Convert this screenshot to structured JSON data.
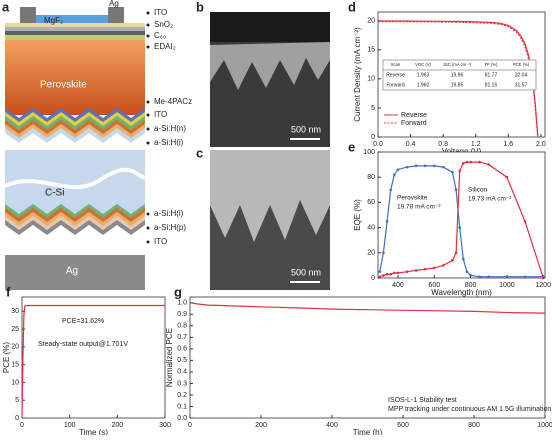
{
  "figure": {
    "a": {
      "panel": "a",
      "top": [
        "MgF₂",
        "Ag"
      ],
      "perovskite": "Perovskite",
      "silicon": "C-Si",
      "bottom": "Ag",
      "labels": [
        "ITO",
        "SnO₂",
        "C₆₀",
        "EDAI₂",
        "Me-4PACz",
        "ITO",
        "a-Si:H(n)",
        "a-Si:H(i)",
        "a-Si:H(i)",
        "a-Si:H(p)",
        "ITO"
      ]
    },
    "b": {
      "panel": "b",
      "scale": "500 nm"
    },
    "c": {
      "panel": "c",
      "scale": "500 nm"
    }
  },
  "chart_data": [
    {
      "type": "line",
      "panel": "d",
      "xlabel": "Voltage (V)",
      "ylabel": "Current Density (mA cm⁻²)",
      "xlim": [
        0,
        2.05
      ],
      "ylim": [
        0,
        21.5
      ],
      "xticks": [
        {
          "value": 0,
          "label": "0.0"
        },
        0.4,
        0.8,
        1.2,
        1.6,
        {
          "value": 2,
          "label": "2.0"
        }
      ],
      "yticks": [
        0,
        5,
        10,
        15,
        20
      ],
      "legend": "lower-left",
      "series": [
        {
          "name": "Reverse",
          "color": "#e03040",
          "dash": false,
          "x": [
            0,
            0.2,
            0.4,
            0.6,
            0.8,
            1.0,
            1.2,
            1.4,
            1.5,
            1.6,
            1.7,
            1.75,
            1.8,
            1.85,
            1.9,
            1.93,
            1.963
          ],
          "values": [
            19.96,
            19.95,
            19.94,
            19.92,
            19.9,
            19.87,
            19.82,
            19.7,
            19.55,
            19.2,
            18.3,
            17.5,
            16.2,
            14.0,
            9.8,
            5.8,
            0
          ]
        },
        {
          "name": "Forward",
          "color": "#e03040",
          "dash": true,
          "x": [
            0,
            0.2,
            0.4,
            0.6,
            0.8,
            1.0,
            1.2,
            1.4,
            1.5,
            1.6,
            1.7,
            1.75,
            1.8,
            1.85,
            1.9,
            1.93,
            1.96
          ],
          "values": [
            19.85,
            19.84,
            19.83,
            19.81,
            19.78,
            19.74,
            19.68,
            19.55,
            19.38,
            19.0,
            18.0,
            17.1,
            15.7,
            13.4,
            9.2,
            5.2,
            0
          ]
        }
      ],
      "table": {
        "header": [
          "Scan",
          "VOC (V)",
          "JSC (mA cm⁻²)",
          "FF (%)",
          "PCE (%)"
        ],
        "rows": [
          [
            "Reverse",
            "1.963",
            "19.96",
            "81.77",
            "32.04"
          ],
          [
            "Forward",
            "1.960",
            "19.85",
            "81.15",
            "31.57"
          ]
        ]
      }
    },
    {
      "type": "line",
      "panel": "e",
      "xlabel": "Wavelength (nm)",
      "ylabel": "EQE (%)",
      "xlim": [
        290,
        1210
      ],
      "ylim": [
        0,
        100
      ],
      "xticks": [
        400,
        600,
        800,
        1000,
        1200
      ],
      "yticks": [
        0,
        20,
        40,
        60,
        80,
        100
      ],
      "markers": true,
      "series": [
        {
          "color": "#3b6fc4",
          "x": [
            300,
            320,
            340,
            360,
            380,
            400,
            450,
            500,
            550,
            600,
            650,
            700,
            720,
            740,
            760,
            780,
            800,
            850,
            900,
            1000,
            1100,
            1200
          ],
          "values": [
            5,
            20,
            45,
            70,
            82,
            86,
            88,
            89,
            89,
            89,
            88,
            84,
            70,
            40,
            15,
            5,
            2,
            1,
            1,
            1,
            1,
            1
          ]
        },
        {
          "color": "#e03040",
          "x": [
            300,
            320,
            340,
            360,
            380,
            400,
            450,
            500,
            550,
            600,
            650,
            700,
            720,
            740,
            760,
            780,
            800,
            850,
            900,
            1000,
            1100,
            1200
          ],
          "values": [
            1,
            2,
            3,
            3,
            4,
            4,
            5,
            6,
            7,
            8,
            10,
            14,
            20,
            85,
            91,
            92,
            92,
            92,
            90,
            80,
            45,
            0
          ]
        }
      ],
      "annotations": [
        "Perovskite",
        "19.78 mA cm⁻²",
        "Silicon",
        "19.73 mA cm⁻²"
      ]
    },
    {
      "type": "line",
      "panel": "f",
      "xlabel": "Time (s)",
      "ylabel": "PCE (%)",
      "xlim": [
        0,
        300
      ],
      "ylim": [
        0,
        34
      ],
      "xticks": [
        0,
        100,
        200,
        300
      ],
      "yticks": [
        0,
        5,
        10,
        15,
        20,
        25,
        30
      ],
      "series": [
        {
          "color": "#e03040",
          "x": [
            0,
            2,
            4,
            6,
            10,
            50,
            100,
            150,
            200,
            250,
            300
          ],
          "values": [
            0,
            18,
            29,
            31.5,
            31.6,
            31.62,
            31.62,
            31.62,
            31.62,
            31.62,
            31.62
          ]
        }
      ],
      "annotations": [
        "PCE=31.62%",
        "Steady-state output@1.701V"
      ]
    },
    {
      "type": "line",
      "panel": "g",
      "xlabel": "Time (h)",
      "ylabel": "Normalized PCE",
      "xlim": [
        0,
        1000
      ],
      "ylim": [
        0,
        1.05
      ],
      "xticks": [
        0,
        200,
        400,
        600,
        800,
        1000
      ],
      "yticks": [
        {
          "value": 0,
          "label": "0.0"
        },
        0.1,
        0.2,
        0.3,
        0.4,
        0.5,
        0.6,
        0.7,
        0.8,
        0.9,
        {
          "value": 1,
          "label": "1.0"
        }
      ],
      "series": [
        {
          "color": "#e03040",
          "x": [
            0,
            20,
            50,
            100,
            200,
            300,
            400,
            500,
            600,
            700,
            800,
            900,
            1000
          ],
          "values": [
            1.0,
            0.99,
            0.98,
            0.975,
            0.965,
            0.955,
            0.945,
            0.94,
            0.935,
            0.93,
            0.925,
            0.915,
            0.91
          ]
        }
      ],
      "annotations": [
        "ISOS-L-1 Stability test",
        "MPP tracking under continuous AM 1.5G illumination"
      ]
    }
  ]
}
